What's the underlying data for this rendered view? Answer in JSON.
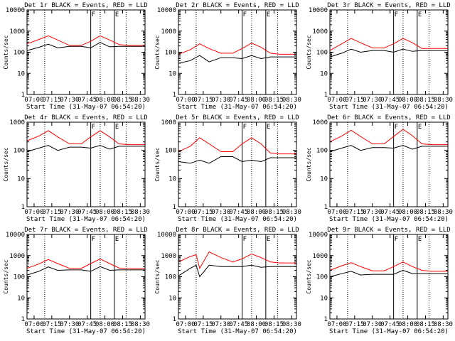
{
  "figure": {
    "xlabel": "Start Time (31-May-07 06:54:20)",
    "ylabel": "Counts/sec"
  },
  "chart_data": [
    {
      "type": "line",
      "title": "Det 1r BLACK = Events, RED = LLD",
      "xlabel": "Start Time (31-May-07 06:54:20)",
      "ylabel": "Counts/sec",
      "yscale": "log",
      "ylim": [
        1,
        10000
      ],
      "xlim": [
        "06:54",
        "08:34"
      ],
      "x_ticks": [
        "07:00",
        "07:15",
        "07:30",
        "07:45",
        "08:00",
        "08:15",
        "08:30"
      ],
      "y_ticks": [
        "1",
        "10",
        "100",
        "1000",
        "10000"
      ],
      "markers": [
        {
          "x": "07:48",
          "label": "F"
        },
        {
          "x": "08:08",
          "label": "E"
        }
      ],
      "dotted_lines": [
        "07:09",
        "07:56",
        "08:18"
      ],
      "series": [
        {
          "name": "LLD",
          "color": "#ff0000",
          "x": [
            "06:54",
            "07:04",
            "07:12",
            "07:20",
            "07:30",
            "07:40",
            "07:48",
            "07:56",
            "08:04",
            "08:12",
            "08:20",
            "08:30",
            "08:34"
          ],
          "values": [
            250,
            400,
            600,
            380,
            210,
            210,
            330,
            600,
            380,
            230,
            210,
            210,
            210
          ]
        },
        {
          "name": "Events",
          "color": "#000000",
          "x": [
            "06:54",
            "07:04",
            "07:12",
            "07:20",
            "07:30",
            "07:40",
            "07:48",
            "07:56",
            "08:04",
            "08:12",
            "08:20",
            "08:30",
            "08:34"
          ],
          "values": [
            120,
            170,
            240,
            160,
            190,
            190,
            160,
            290,
            180,
            190,
            190,
            190,
            190
          ]
        }
      ]
    },
    {
      "type": "line",
      "title": "Det 2r BLACK = Events, RED = LLD",
      "xlabel": "Start Time (31-May-07 06:54:20)",
      "ylabel": "Counts/sec",
      "yscale": "log",
      "ylim": [
        1,
        10000
      ],
      "xlim": [
        "06:54",
        "08:34"
      ],
      "x_ticks": [
        "07:00",
        "07:15",
        "07:30",
        "07:45",
        "08:00",
        "08:15",
        "08:30"
      ],
      "y_ticks": [
        "1",
        "10",
        "100",
        "1000",
        "10000"
      ],
      "markers": [
        {
          "x": "07:48",
          "label": "F"
        },
        {
          "x": "08:08",
          "label": "E"
        }
      ],
      "dotted_lines": [
        "07:09",
        "07:56",
        "08:18"
      ],
      "series": [
        {
          "name": "LLD",
          "color": "#ff0000",
          "x": [
            "06:54",
            "07:04",
            "07:12",
            "07:20",
            "07:30",
            "07:40",
            "07:48",
            "07:56",
            "08:04",
            "08:12",
            "08:20",
            "08:30",
            "08:34"
          ],
          "values": [
            80,
            130,
            250,
            150,
            90,
            90,
            150,
            270,
            170,
            90,
            80,
            80,
            80
          ]
        },
        {
          "name": "Events",
          "color": "#000000",
          "x": [
            "06:54",
            "07:04",
            "07:12",
            "07:20",
            "07:30",
            "07:40",
            "07:48",
            "07:56",
            "08:04",
            "08:12",
            "08:20",
            "08:30",
            "08:34"
          ],
          "values": [
            30,
            40,
            70,
            35,
            55,
            55,
            50,
            70,
            50,
            60,
            60,
            60,
            60
          ]
        }
      ]
    },
    {
      "type": "line",
      "title": "Det 3r BLACK = Events, RED = LLD",
      "xlabel": "Start Time (31-May-07 06:54:20)",
      "ylabel": "Counts/sec",
      "yscale": "log",
      "ylim": [
        1,
        10000
      ],
      "xlim": [
        "06:54",
        "08:34"
      ],
      "x_ticks": [
        "07:00",
        "07:15",
        "07:30",
        "07:45",
        "08:00",
        "08:15",
        "08:30"
      ],
      "y_ticks": [
        "1",
        "10",
        "100",
        "1000",
        "10000"
      ],
      "markers": [
        {
          "x": "07:48",
          "label": "F"
        },
        {
          "x": "08:08",
          "label": "E"
        }
      ],
      "dotted_lines": [
        "07:09",
        "07:56",
        "08:18"
      ],
      "series": [
        {
          "name": "LLD",
          "color": "#ff0000",
          "x": [
            "06:54",
            "07:04",
            "07:12",
            "07:20",
            "07:30",
            "07:40",
            "07:48",
            "07:56",
            "08:04",
            "08:12",
            "08:20",
            "08:30",
            "08:34"
          ],
          "values": [
            120,
            250,
            450,
            280,
            160,
            160,
            250,
            450,
            280,
            150,
            150,
            150,
            150
          ]
        },
        {
          "name": "Events",
          "color": "#000000",
          "x": [
            "06:54",
            "07:04",
            "07:12",
            "07:20",
            "07:30",
            "07:40",
            "07:48",
            "07:56",
            "08:04",
            "08:12",
            "08:20",
            "08:30",
            "08:34"
          ],
          "values": [
            60,
            90,
            140,
            100,
            120,
            120,
            100,
            140,
            110,
            120,
            120,
            120,
            120
          ]
        }
      ]
    },
    {
      "type": "line",
      "title": "Det 4r BLACK = Events, RED = LLD",
      "xlabel": "Start Time (31-May-07 06:54:20)",
      "ylabel": "Counts/sec",
      "yscale": "log",
      "ylim": [
        1,
        1000
      ],
      "xlim": [
        "06:54",
        "08:34"
      ],
      "x_ticks": [
        "07:00",
        "07:15",
        "07:30",
        "07:45",
        "08:00",
        "08:15",
        "08:30"
      ],
      "y_ticks": [
        "1",
        "10",
        "100",
        "1000"
      ],
      "markers": [
        {
          "x": "07:48",
          "label": "F"
        },
        {
          "x": "08:08",
          "label": "E"
        }
      ],
      "dotted_lines": [
        "07:09",
        "07:56",
        "08:18"
      ],
      "series": [
        {
          "name": "LLD",
          "color": "#ff0000",
          "x": [
            "06:54",
            "07:04",
            "07:12",
            "07:20",
            "07:30",
            "07:40",
            "07:48",
            "07:56",
            "08:04",
            "08:12",
            "08:20",
            "08:30",
            "08:34"
          ],
          "values": [
            220,
            320,
            500,
            300,
            170,
            170,
            300,
            500,
            300,
            170,
            160,
            160,
            160
          ]
        },
        {
          "name": "Events",
          "color": "#000000",
          "x": [
            "06:54",
            "07:04",
            "07:12",
            "07:20",
            "07:30",
            "07:40",
            "07:48",
            "07:56",
            "08:04",
            "08:12",
            "08:20",
            "08:30",
            "08:34"
          ],
          "values": [
            90,
            120,
            150,
            100,
            130,
            130,
            120,
            150,
            110,
            140,
            140,
            140,
            140
          ]
        }
      ]
    },
    {
      "type": "line",
      "title": "Det 5r BLACK = Events, RED = LLD",
      "xlabel": "Start Time (31-May-07 06:54:20)",
      "ylabel": "Counts/sec",
      "yscale": "log",
      "ylim": [
        1,
        1000
      ],
      "xlim": [
        "06:54",
        "08:34"
      ],
      "x_ticks": [
        "07:00",
        "07:15",
        "07:30",
        "07:45",
        "08:00",
        "08:15",
        "08:30"
      ],
      "y_ticks": [
        "1",
        "10",
        "100",
        "1000"
      ],
      "markers": [
        {
          "x": "07:48",
          "label": "F"
        },
        {
          "x": "08:08",
          "label": "E"
        }
      ],
      "dotted_lines": [
        "07:09",
        "07:56",
        "08:18"
      ],
      "series": [
        {
          "name": "LLD",
          "color": "#ff0000",
          "x": [
            "06:54",
            "07:04",
            "07:12",
            "07:20",
            "07:30",
            "07:40",
            "07:48",
            "07:56",
            "08:04",
            "08:12",
            "08:20",
            "08:30",
            "08:34"
          ],
          "values": [
            90,
            140,
            280,
            170,
            90,
            90,
            170,
            280,
            170,
            80,
            75,
            75,
            75
          ]
        },
        {
          "name": "Events",
          "color": "#000000",
          "x": [
            "06:54",
            "07:04",
            "07:12",
            "07:20",
            "07:30",
            "07:40",
            "07:48",
            "07:56",
            "08:04",
            "08:12",
            "08:20",
            "08:30",
            "08:34"
          ],
          "values": [
            40,
            35,
            45,
            35,
            60,
            60,
            40,
            45,
            40,
            55,
            55,
            55,
            55
          ]
        }
      ]
    },
    {
      "type": "line",
      "title": "Det 6r BLACK = Events, RED = LLD",
      "xlabel": "Start Time (31-May-07 06:54:20)",
      "ylabel": "Counts/sec",
      "yscale": "log",
      "ylim": [
        1,
        1000
      ],
      "xlim": [
        "06:54",
        "08:34"
      ],
      "x_ticks": [
        "07:00",
        "07:15",
        "07:30",
        "07:45",
        "08:00",
        "08:15",
        "08:30"
      ],
      "y_ticks": [
        "1",
        "10",
        "100",
        "1000"
      ],
      "markers": [
        {
          "x": "07:48",
          "label": "F"
        },
        {
          "x": "08:08",
          "label": "E"
        }
      ],
      "dotted_lines": [
        "07:09",
        "07:56",
        "08:18"
      ],
      "series": [
        {
          "name": "LLD",
          "color": "#ff0000",
          "x": [
            "06:54",
            "07:04",
            "07:12",
            "07:20",
            "07:30",
            "07:40",
            "07:48",
            "07:56",
            "08:04",
            "08:12",
            "08:20",
            "08:30",
            "08:34"
          ],
          "values": [
            200,
            320,
            520,
            310,
            170,
            170,
            310,
            560,
            330,
            170,
            160,
            160,
            160
          ]
        },
        {
          "name": "Events",
          "color": "#000000",
          "x": [
            "06:54",
            "07:04",
            "07:12",
            "07:20",
            "07:30",
            "07:40",
            "07:48",
            "07:56",
            "08:04",
            "08:12",
            "08:20",
            "08:30",
            "08:34"
          ],
          "values": [
            90,
            120,
            150,
            100,
            125,
            125,
            120,
            150,
            110,
            140,
            140,
            140,
            140
          ]
        }
      ]
    },
    {
      "type": "line",
      "title": "Det 7r BLACK = Events, RED = LLD",
      "xlabel": "Start Time (31-May-07 06:54:20)",
      "ylabel": "Counts/sec",
      "yscale": "log",
      "ylim": [
        1,
        10000
      ],
      "xlim": [
        "06:54",
        "08:34"
      ],
      "x_ticks": [
        "07:00",
        "07:15",
        "07:30",
        "07:45",
        "08:00",
        "08:15",
        "08:30"
      ],
      "y_ticks": [
        "1",
        "10",
        "100",
        "1000",
        "10000"
      ],
      "markers": [
        {
          "x": "07:48",
          "label": "F"
        },
        {
          "x": "08:08",
          "label": "E"
        }
      ],
      "dotted_lines": [
        "07:09",
        "07:56",
        "08:18"
      ],
      "series": [
        {
          "name": "LLD",
          "color": "#ff0000",
          "x": [
            "06:54",
            "07:04",
            "07:12",
            "07:20",
            "07:30",
            "07:40",
            "07:48",
            "07:56",
            "08:04",
            "08:12",
            "08:20",
            "08:30",
            "08:34"
          ],
          "values": [
            250,
            400,
            650,
            420,
            250,
            250,
            420,
            700,
            420,
            260,
            240,
            240,
            240
          ]
        },
        {
          "name": "Events",
          "color": "#000000",
          "x": [
            "06:54",
            "07:04",
            "07:12",
            "07:20",
            "07:30",
            "07:40",
            "07:48",
            "07:56",
            "08:04",
            "08:12",
            "08:20",
            "08:30",
            "08:34"
          ],
          "values": [
            120,
            180,
            290,
            200,
            210,
            210,
            180,
            300,
            200,
            210,
            210,
            210,
            210
          ]
        }
      ]
    },
    {
      "type": "line",
      "title": "Det 8r BLACK = Events, RED = LLD",
      "xlabel": "Start Time (31-May-07 06:54:20)",
      "ylabel": "Counts/sec",
      "yscale": "log",
      "ylim": [
        1,
        10000
      ],
      "xlim": [
        "06:54",
        "08:34"
      ],
      "x_ticks": [
        "07:00",
        "07:15",
        "07:30",
        "07:45",
        "08:00",
        "08:15",
        "08:30"
      ],
      "y_ticks": [
        "1",
        "10",
        "100",
        "1000",
        "10000"
      ],
      "markers": [
        {
          "x": "07:48",
          "label": "F"
        },
        {
          "x": "08:08",
          "label": "E"
        }
      ],
      "dotted_lines": [
        "07:09",
        "07:56",
        "08:18"
      ],
      "series": [
        {
          "name": "LLD",
          "color": "#ff0000",
          "x": [
            "06:54",
            "07:04",
            "07:09",
            "07:12",
            "07:20",
            "07:30",
            "07:40",
            "07:48",
            "07:56",
            "08:04",
            "08:12",
            "08:20",
            "08:30",
            "08:34"
          ],
          "values": [
            500,
            900,
            1100,
            250,
            1500,
            800,
            500,
            700,
            1200,
            800,
            500,
            450,
            450,
            450
          ]
        },
        {
          "name": "Events",
          "color": "#000000",
          "x": [
            "06:54",
            "07:04",
            "07:09",
            "07:12",
            "07:20",
            "07:30",
            "07:40",
            "07:48",
            "07:56",
            "08:04",
            "08:12",
            "08:20",
            "08:30",
            "08:34"
          ],
          "values": [
            110,
            250,
            350,
            100,
            350,
            300,
            300,
            300,
            350,
            280,
            300,
            300,
            300,
            300
          ]
        }
      ]
    },
    {
      "type": "line",
      "title": "Det 9r BLACK = Events, RED = LLD",
      "xlabel": "Start Time (31-May-07 06:54:20)",
      "ylabel": "Counts/sec",
      "yscale": "log",
      "ylim": [
        1,
        10000
      ],
      "xlim": [
        "06:54",
        "08:34"
      ],
      "x_ticks": [
        "07:00",
        "07:15",
        "07:30",
        "07:45",
        "08:00",
        "08:15",
        "08:30"
      ],
      "y_ticks": [
        "1",
        "10",
        "100",
        "1000",
        "10000"
      ],
      "markers": [
        {
          "x": "07:48",
          "label": "F"
        },
        {
          "x": "08:08",
          "label": "E"
        }
      ],
      "dotted_lines": [
        "07:09",
        "07:56",
        "08:18"
      ],
      "series": [
        {
          "name": "LLD",
          "color": "#ff0000",
          "x": [
            "06:54",
            "07:04",
            "07:12",
            "07:20",
            "07:30",
            "07:40",
            "07:48",
            "07:56",
            "08:04",
            "08:12",
            "08:20",
            "08:30",
            "08:34"
          ],
          "values": [
            200,
            330,
            460,
            300,
            190,
            190,
            300,
            500,
            300,
            200,
            180,
            180,
            180
          ]
        },
        {
          "name": "Events",
          "color": "#000000",
          "x": [
            "06:54",
            "07:04",
            "07:12",
            "07:20",
            "07:30",
            "07:40",
            "07:48",
            "07:56",
            "08:04",
            "08:12",
            "08:20",
            "08:30",
            "08:34"
          ],
          "values": [
            100,
            140,
            180,
            120,
            130,
            130,
            130,
            200,
            140,
            140,
            140,
            140,
            140
          ]
        }
      ]
    }
  ]
}
